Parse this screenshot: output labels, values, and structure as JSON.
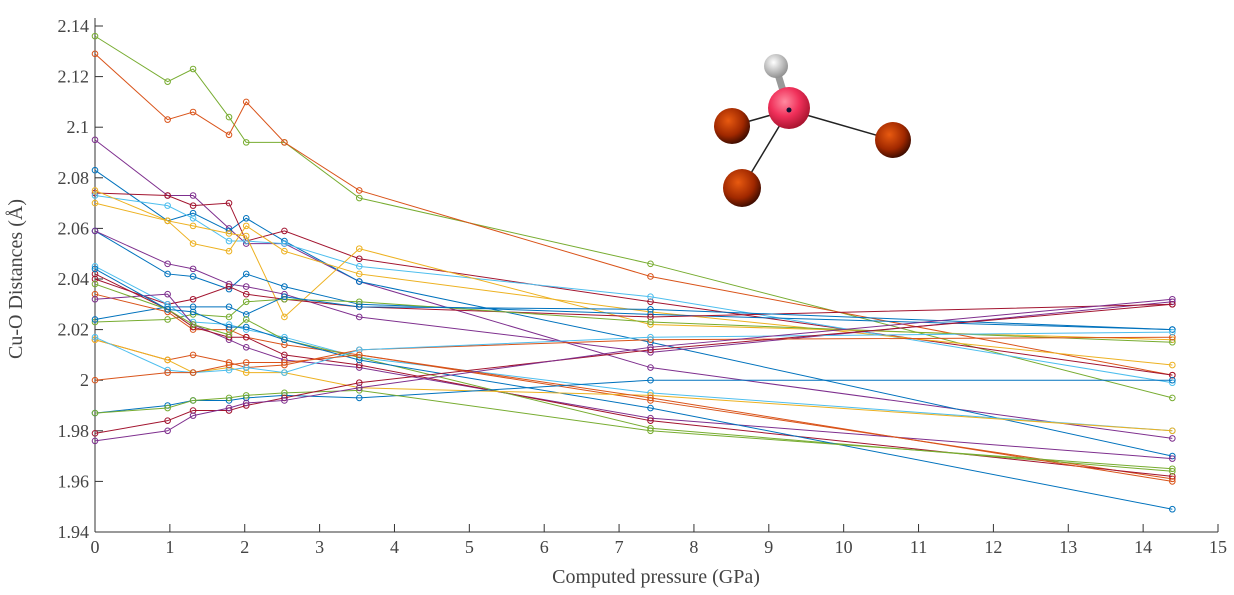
{
  "chart_data": {
    "type": "line",
    "xlabel": "Computed pressure (GPa)",
    "ylabel": "Cu-O Distances (Å)",
    "x": [
      0,
      0.97,
      1.31,
      1.79,
      2.02,
      2.53,
      3.53,
      7.42,
      14.39
    ],
    "xlim": [
      0,
      15
    ],
    "xticks": [
      0,
      1,
      2,
      3,
      4,
      5,
      6,
      7,
      8,
      9,
      10,
      11,
      12,
      13,
      14,
      15
    ],
    "ylim": [
      1.94,
      2.14
    ],
    "yticks": [
      1.94,
      1.96,
      1.98,
      2,
      2.02,
      2.04,
      2.06,
      2.08,
      2.1,
      2.12,
      2.14
    ],
    "series": [
      {
        "color": "#77AC30",
        "values": [
          2.136,
          2.118,
          2.123,
          2.104,
          2.094,
          2.094,
          2.072,
          2.046,
          1.993
        ]
      },
      {
        "color": "#D95319",
        "values": [
          2.129,
          2.103,
          2.106,
          2.097,
          2.11,
          2.094,
          2.075,
          2.041,
          2.002
        ]
      },
      {
        "color": "#7E2F8E",
        "values": [
          2.095,
          2.073,
          2.073,
          2.06,
          2.054,
          2.054,
          2.039,
          2.005,
          1.977
        ]
      },
      {
        "color": "#0072BD",
        "values": [
          2.083,
          2.063,
          2.066,
          2.059,
          2.064,
          2.055,
          2.039,
          2.015,
          1.97
        ]
      },
      {
        "color": "#A2142F",
        "values": [
          2.074,
          2.073,
          2.069,
          2.07,
          2.055,
          2.059,
          2.048,
          2.031,
          2.002
        ]
      },
      {
        "color": "#4DBEEE",
        "values": [
          2.073,
          2.069,
          2.064,
          2.055,
          2.055,
          2.054,
          2.045,
          2.033,
          1.999
        ]
      },
      {
        "color": "#EDB120",
        "values": [
          2.075,
          2.063,
          2.054,
          2.051,
          2.061,
          2.051,
          2.042,
          2.027,
          2.006
        ]
      },
      {
        "color": "#EDB120",
        "values": [
          2.07,
          2.063,
          2.061,
          2.058,
          2.057,
          2.025,
          2.052,
          2.022,
          2.016
        ]
      },
      {
        "color": "#0072BD",
        "values": [
          2.059,
          2.042,
          2.041,
          2.036,
          2.042,
          2.037,
          2.03,
          2.026,
          2.02
        ]
      },
      {
        "color": "#7E2F8E",
        "values": [
          2.059,
          2.046,
          2.044,
          2.038,
          2.037,
          2.034,
          2.025,
          2.011,
          2.031
        ]
      },
      {
        "color": "#A2142F",
        "values": [
          2.04,
          2.03,
          2.032,
          2.037,
          2.034,
          2.032,
          2.029,
          2.025,
          2.03
        ]
      },
      {
        "color": "#77AC30",
        "values": [
          2.023,
          2.024,
          2.026,
          2.025,
          2.031,
          2.032,
          2.031,
          2.023,
          2.015
        ]
      },
      {
        "color": "#0072BD",
        "values": [
          2.024,
          2.029,
          2.029,
          2.029,
          2.026,
          2.033,
          2.029,
          2.028,
          2.02
        ]
      },
      {
        "color": "#4DBEEE",
        "values": [
          2.045,
          2.03,
          2.023,
          2.022,
          2.02,
          2.017,
          2.009,
          1.995,
          1.98
        ]
      },
      {
        "color": "#D95319",
        "values": [
          2.034,
          2.027,
          2.02,
          2.02,
          2.017,
          2.014,
          2.01,
          1.992,
          1.961
        ]
      },
      {
        "color": "#7E2F8E",
        "values": [
          2.032,
          2.034,
          2.022,
          2.016,
          2.013,
          2.008,
          2.005,
          1.985,
          1.969
        ]
      },
      {
        "color": "#A2142F",
        "values": [
          2.042,
          2.028,
          2.021,
          2.017,
          2.017,
          2.01,
          2.006,
          1.984,
          1.962
        ]
      },
      {
        "color": "#77AC30",
        "values": [
          2.038,
          2.028,
          2.022,
          2.018,
          2.024,
          2.016,
          2.009,
          1.981,
          1.964
        ]
      },
      {
        "color": "#0072BD",
        "values": [
          2.044,
          2.028,
          2.027,
          2.021,
          2.021,
          2.016,
          2.008,
          1.989,
          1.949
        ]
      },
      {
        "color": "#D95319",
        "values": [
          2.016,
          2.008,
          2.01,
          2.007,
          2.005,
          2.006,
          2.012,
          2.016,
          2.017
        ]
      },
      {
        "color": "#EDB120",
        "values": [
          2.016,
          2.008,
          2.003,
          2.005,
          2.003,
          2.003,
          1.997,
          1.994,
          1.98
        ]
      },
      {
        "color": "#4DBEEE",
        "values": [
          2.017,
          2.004,
          2.003,
          2.004,
          2.005,
          2.003,
          2.012,
          2.017,
          2.019
        ]
      },
      {
        "color": "#D95319",
        "values": [
          2.0,
          2.003,
          2.003,
          2.006,
          2.007,
          2.007,
          2.01,
          1.993,
          1.96
        ]
      },
      {
        "color": "#0072BD",
        "values": [
          1.987,
          1.99,
          1.992,
          1.992,
          1.993,
          1.994,
          1.993,
          2.0,
          2.0
        ]
      },
      {
        "color": "#77AC30",
        "values": [
          1.987,
          1.989,
          1.992,
          1.993,
          1.994,
          1.995,
          1.996,
          1.98,
          1.965
        ]
      },
      {
        "color": "#A2142F",
        "values": [
          1.979,
          1.984,
          1.988,
          1.988,
          1.99,
          1.993,
          1.999,
          2.012,
          2.03
        ]
      },
      {
        "color": "#7E2F8E",
        "values": [
          1.976,
          1.98,
          1.986,
          1.989,
          1.991,
          1.992,
          1.997,
          2.013,
          2.032
        ]
      }
    ]
  }
}
